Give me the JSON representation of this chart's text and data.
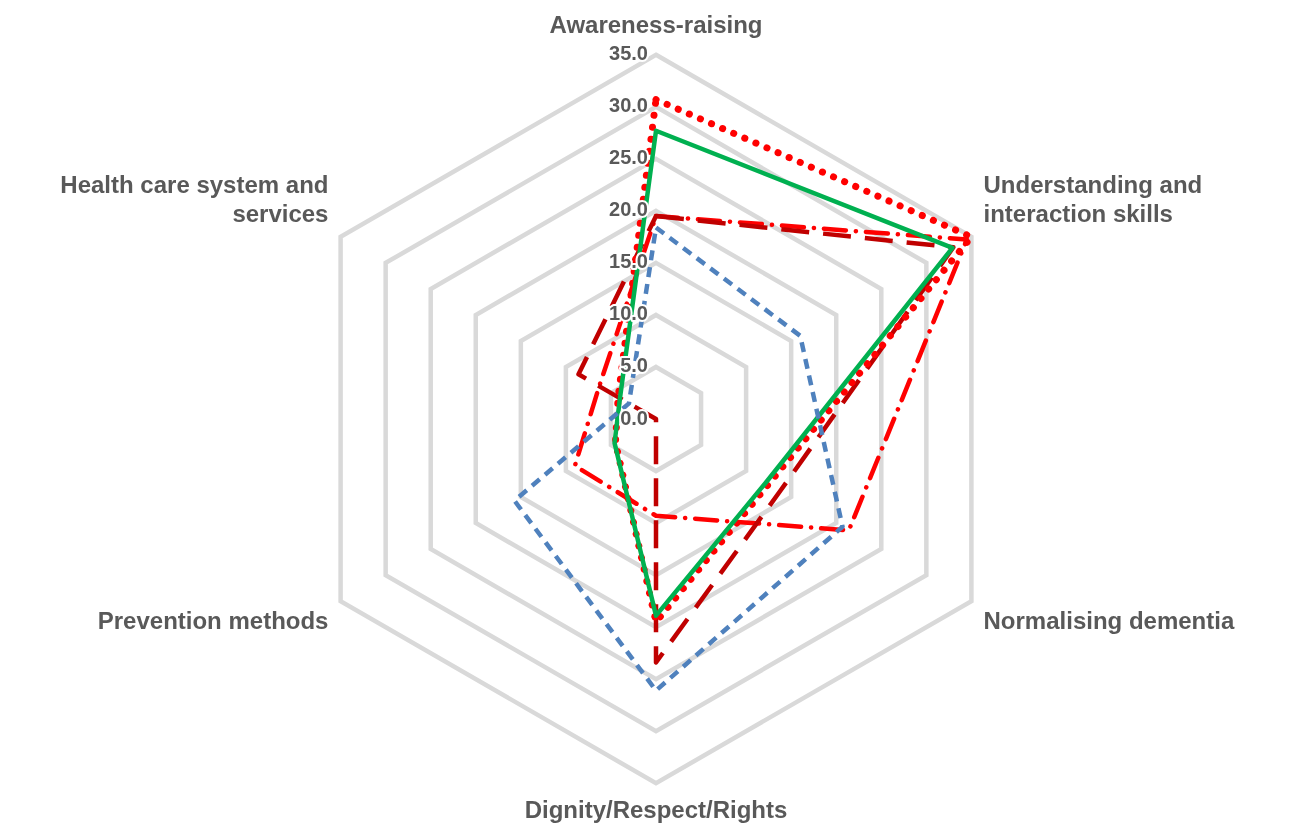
{
  "chart_data": {
    "type": "radar",
    "categories": [
      "Awareness-raising",
      "Understanding and interaction skills",
      "Normalising dementia",
      "Dignity/Respect/Rights",
      "Prevention methods",
      "Health care system and services"
    ],
    "series": [
      {
        "color": "#4f81bd",
        "line_style": "dashed",
        "values": [
          18.4,
          16.0,
          20.7,
          26.1,
          15.7,
          3.0
        ]
      },
      {
        "color": "#00b050",
        "line_style": "solid",
        "values": [
          27.7,
          32.9,
          12.2,
          18.9,
          4.6,
          4.0
        ]
      },
      {
        "color": "#ff0000",
        "line_style": "dotted",
        "values": [
          30.7,
          35.0,
          12.5,
          19.5,
          4.5,
          4.2
        ]
      },
      {
        "color": "#c00000",
        "line_style": "longdash",
        "values": [
          19.5,
          33.0,
          13.8,
          23.4,
          0.0,
          8.6
        ]
      },
      {
        "color": "#ff0000",
        "line_style": "dashdot",
        "values": [
          19.5,
          34.5,
          21.4,
          9.3,
          9.0,
          6.3
        ]
      }
    ],
    "ylim": [
      0,
      35
    ],
    "yticks": [
      {
        "value": 0,
        "label": "0.0"
      },
      {
        "value": 5,
        "label": "5.0"
      },
      {
        "value": 10,
        "label": "10.0"
      },
      {
        "value": 15,
        "label": "15.0"
      },
      {
        "value": 20,
        "label": "20.0"
      },
      {
        "value": 25,
        "label": "25.0"
      },
      {
        "value": 30,
        "label": "30.0"
      },
      {
        "value": 35,
        "label": "35.0"
      }
    ],
    "grid": true,
    "legend": false,
    "marker": "none"
  }
}
